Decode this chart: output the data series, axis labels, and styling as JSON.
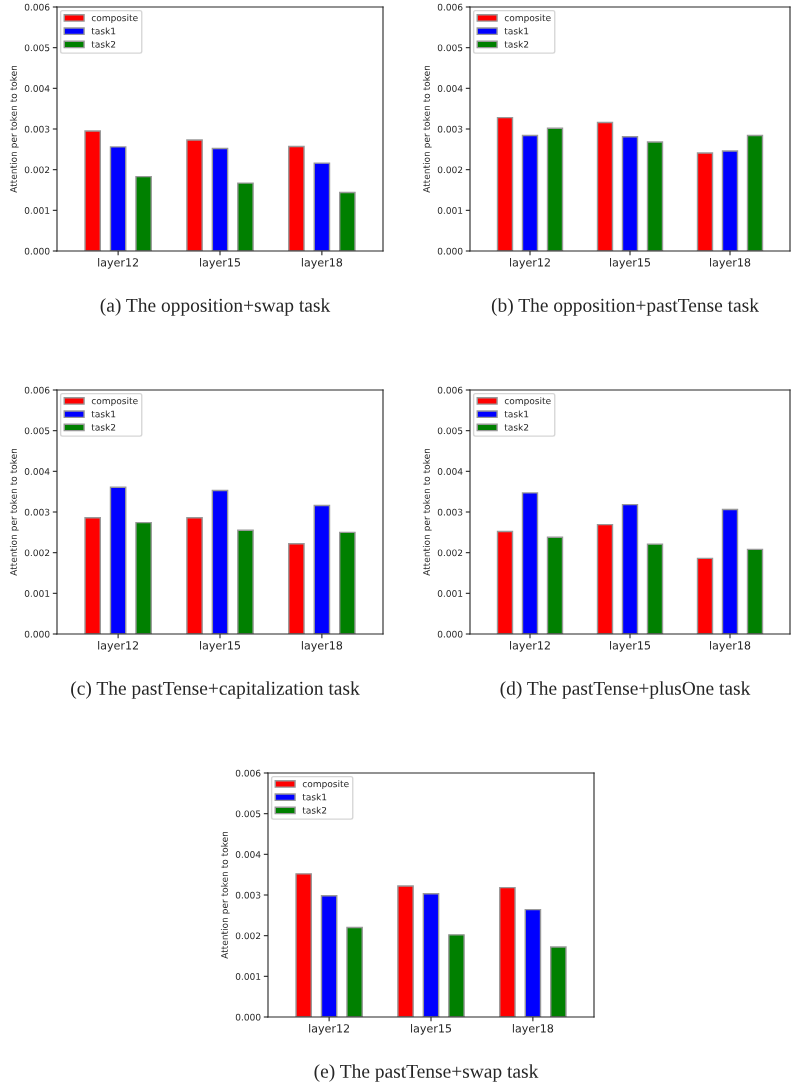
{
  "chart_data": [
    {
      "type": "bar",
      "categories": [
        "layer12",
        "layer15",
        "layer18"
      ],
      "ylabel": "Attention per token to token",
      "ylim": [
        0,
        0.006
      ],
      "yticks": [
        {
          "value": 0,
          "label": "0.000"
        },
        {
          "value": 0.001,
          "label": "0.001"
        },
        {
          "value": 0.002,
          "label": "0.002"
        },
        {
          "value": 0.003,
          "label": "0.003"
        },
        {
          "value": 0.004,
          "label": "0.004"
        },
        {
          "value": 0.005,
          "label": "0.005"
        },
        {
          "value": 0.006,
          "label": "0.006"
        }
      ],
      "legend": "top left",
      "annotations": [
        "(a) The opposition+swap task"
      ],
      "series": [
        {
          "name": "composite",
          "color": "#ff0000",
          "values": [
            0.00295,
            0.00273,
            0.00257
          ]
        },
        {
          "name": "task1",
          "color": "#0000ff",
          "values": [
            0.00256,
            0.00252,
            0.00216
          ]
        },
        {
          "name": "task2",
          "color": "#008000",
          "values": [
            0.00183,
            0.00167,
            0.00144
          ]
        }
      ]
    },
    {
      "type": "bar",
      "categories": [
        "layer12",
        "layer15",
        "layer18"
      ],
      "ylabel": "Attention per token to token",
      "ylim": [
        0,
        0.006
      ],
      "yticks": [
        {
          "value": 0,
          "label": "0.000"
        },
        {
          "value": 0.001,
          "label": "0.001"
        },
        {
          "value": 0.002,
          "label": "0.002"
        },
        {
          "value": 0.003,
          "label": "0.003"
        },
        {
          "value": 0.004,
          "label": "0.004"
        },
        {
          "value": 0.005,
          "label": "0.005"
        },
        {
          "value": 0.006,
          "label": "0.006"
        }
      ],
      "legend": "top left",
      "annotations": [
        "(b) The opposition+pastTense task"
      ],
      "series": [
        {
          "name": "composite",
          "color": "#ff0000",
          "values": [
            0.00328,
            0.00316,
            0.00241
          ]
        },
        {
          "name": "task1",
          "color": "#0000ff",
          "values": [
            0.00284,
            0.00281,
            0.00246
          ]
        },
        {
          "name": "task2",
          "color": "#008000",
          "values": [
            0.00302,
            0.00268,
            0.00284
          ]
        }
      ]
    },
    {
      "type": "bar",
      "categories": [
        "layer12",
        "layer15",
        "layer18"
      ],
      "ylabel": "Attention per token to token",
      "ylim": [
        0,
        0.006
      ],
      "yticks": [
        {
          "value": 0,
          "label": "0.000"
        },
        {
          "value": 0.001,
          "label": "0.001"
        },
        {
          "value": 0.002,
          "label": "0.002"
        },
        {
          "value": 0.003,
          "label": "0.003"
        },
        {
          "value": 0.004,
          "label": "0.004"
        },
        {
          "value": 0.005,
          "label": "0.005"
        },
        {
          "value": 0.006,
          "label": "0.006"
        }
      ],
      "legend": "top left",
      "annotations": [
        "(c) The pastTense+capitalization task"
      ],
      "series": [
        {
          "name": "composite",
          "color": "#ff0000",
          "values": [
            0.00286,
            0.00286,
            0.00222
          ]
        },
        {
          "name": "task1",
          "color": "#0000ff",
          "values": [
            0.00361,
            0.00353,
            0.00316
          ]
        },
        {
          "name": "task2",
          "color": "#008000",
          "values": [
            0.00274,
            0.00255,
            0.0025
          ]
        }
      ]
    },
    {
      "type": "bar",
      "categories": [
        "layer12",
        "layer15",
        "layer18"
      ],
      "ylabel": "Attention per token to token",
      "ylim": [
        0,
        0.006
      ],
      "yticks": [
        {
          "value": 0,
          "label": "0.000"
        },
        {
          "value": 0.001,
          "label": "0.001"
        },
        {
          "value": 0.002,
          "label": "0.002"
        },
        {
          "value": 0.003,
          "label": "0.003"
        },
        {
          "value": 0.004,
          "label": "0.004"
        },
        {
          "value": 0.005,
          "label": "0.005"
        },
        {
          "value": 0.006,
          "label": "0.006"
        }
      ],
      "legend": "top left",
      "annotations": [
        "(d) The pastTense+plusOne task"
      ],
      "series": [
        {
          "name": "composite",
          "color": "#ff0000",
          "values": [
            0.00252,
            0.00269,
            0.00186
          ]
        },
        {
          "name": "task1",
          "color": "#0000ff",
          "values": [
            0.00347,
            0.00318,
            0.00306
          ]
        },
        {
          "name": "task2",
          "color": "#008000",
          "values": [
            0.00238,
            0.00221,
            0.00208
          ]
        }
      ]
    },
    {
      "type": "bar",
      "categories": [
        "layer12",
        "layer15",
        "layer18"
      ],
      "ylabel": "Attention per token to token",
      "ylim": [
        0,
        0.006
      ],
      "yticks": [
        {
          "value": 0,
          "label": "0.000"
        },
        {
          "value": 0.001,
          "label": "0.001"
        },
        {
          "value": 0.002,
          "label": "0.002"
        },
        {
          "value": 0.003,
          "label": "0.003"
        },
        {
          "value": 0.004,
          "label": "0.004"
        },
        {
          "value": 0.005,
          "label": "0.005"
        },
        {
          "value": 0.006,
          "label": "0.006"
        }
      ],
      "legend": "top left",
      "annotations": [
        "(e) The pastTense+swap task"
      ],
      "series": [
        {
          "name": "composite",
          "color": "#ff0000",
          "values": [
            0.00352,
            0.00322,
            0.00318
          ]
        },
        {
          "name": "task1",
          "color": "#0000ff",
          "values": [
            0.00298,
            0.00303,
            0.00264
          ]
        },
        {
          "name": "task2",
          "color": "#008000",
          "values": [
            0.0022,
            0.00202,
            0.00172
          ]
        }
      ]
    }
  ]
}
